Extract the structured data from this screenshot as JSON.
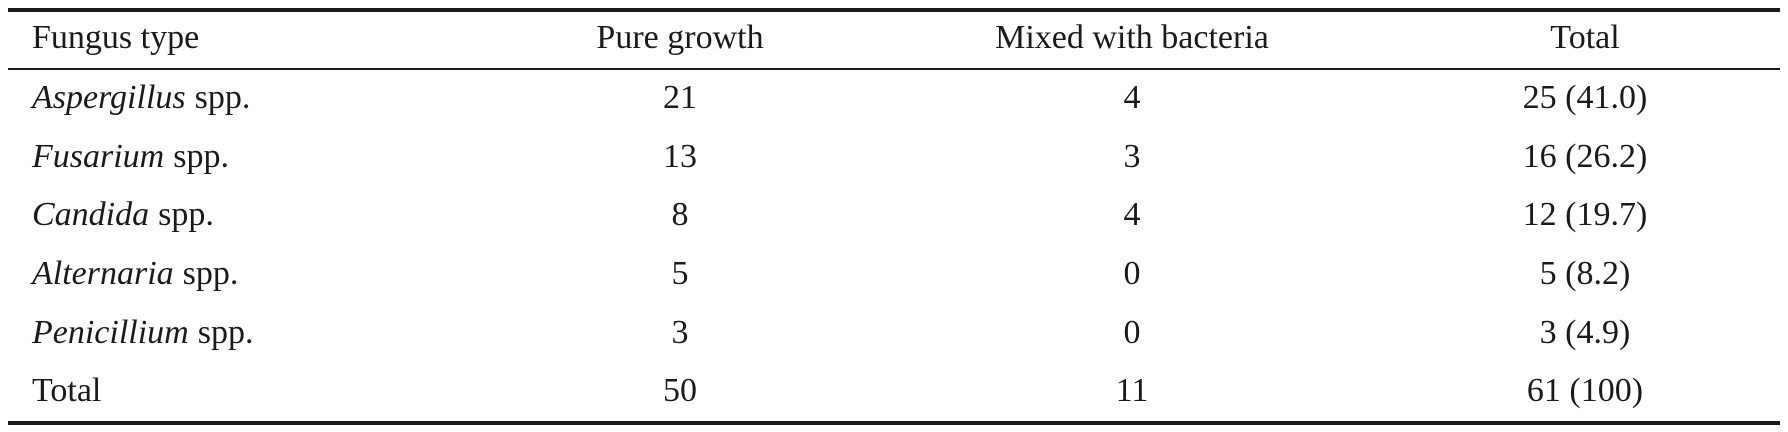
{
  "table": {
    "header": [
      "Fungus type",
      "Pure growth",
      "Mixed with bacteria",
      "Total"
    ],
    "rows": [
      [
        {
          "genus": "Aspergillus",
          "rest": "spp."
        },
        "21",
        "4",
        "25 (41.0)"
      ],
      [
        {
          "genus": "Fusarium",
          "rest": "spp."
        },
        "13",
        "3",
        "16 (26.2)"
      ],
      [
        {
          "genus": "Candida",
          "rest": "spp."
        },
        "8",
        "4",
        "12 (19.7)"
      ],
      [
        {
          "genus": "Alternaria",
          "rest": "spp."
        },
        "5",
        "0",
        "5 (8.2)"
      ],
      [
        {
          "genus": "Penicillium",
          "rest": "spp."
        },
        "3",
        "0",
        "3 (4.9)"
      ],
      [
        "Total",
        "50",
        "11",
        "61 (100)"
      ]
    ]
  }
}
